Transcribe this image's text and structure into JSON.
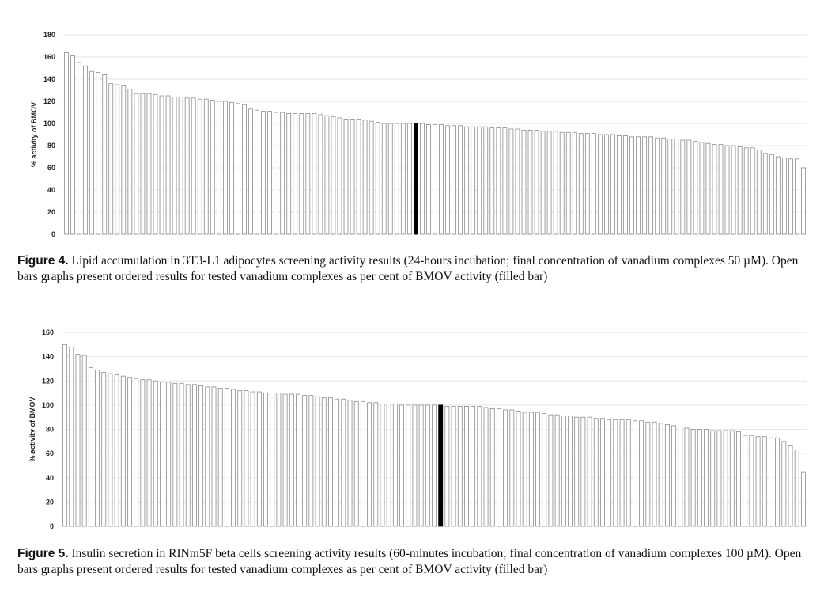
{
  "chart_data": [
    {
      "type": "bar",
      "title": "",
      "xlabel": "",
      "ylabel": "% activity of BMOV",
      "ylim": [
        0,
        180
      ],
      "yticks": [
        0,
        20,
        40,
        60,
        80,
        100,
        120,
        140,
        160,
        180
      ],
      "grid": true,
      "highlight_index": 55,
      "series": [
        {
          "values": [
            164,
            161,
            155,
            152,
            147,
            146,
            144,
            136,
            135,
            134,
            131,
            127,
            127,
            127,
            126,
            125,
            125,
            124,
            124,
            123,
            123,
            122,
            122,
            121,
            120,
            120,
            119,
            118,
            117,
            113,
            112,
            111,
            111,
            110,
            110,
            109,
            109,
            109,
            109,
            109,
            108,
            107,
            106,
            105,
            104,
            104,
            104,
            103,
            102,
            101,
            100,
            100,
            100,
            100,
            100,
            100,
            100,
            99,
            99,
            99,
            98,
            98,
            98,
            97,
            97,
            97,
            97,
            96,
            96,
            96,
            95,
            95,
            94,
            94,
            94,
            93,
            93,
            93,
            92,
            92,
            92,
            91,
            91,
            91,
            90,
            90,
            90,
            89,
            89,
            88,
            88,
            88,
            88,
            87,
            87,
            86,
            86,
            85,
            85,
            84,
            83,
            82,
            81,
            81,
            80,
            80,
            79,
            78,
            78,
            76,
            73,
            72,
            70,
            69,
            68,
            68,
            60
          ]
        }
      ],
      "caption_label": "Figure 4.",
      "caption_text": " Lipid accumulation in 3T3-L1 adipocytes screening activity results (24-hours incubation; final concentration of vanadium complexes 50 µM). Open bars graphs present ordered results for tested vanadium complexes as per cent of BMOV activity (filled bar)"
    },
    {
      "type": "bar",
      "title": "",
      "xlabel": "",
      "ylabel": "% activity of BMOV",
      "ylim": [
        0,
        160
      ],
      "yticks": [
        0,
        20,
        40,
        60,
        80,
        100,
        120,
        140,
        160
      ],
      "grid": true,
      "highlight_index": 58,
      "series": [
        {
          "values": [
            150,
            148,
            142,
            141,
            131,
            129,
            127,
            126,
            125,
            124,
            123,
            122,
            121,
            121,
            120,
            119,
            119,
            118,
            118,
            117,
            117,
            116,
            115,
            115,
            114,
            114,
            113,
            112,
            112,
            111,
            111,
            110,
            110,
            110,
            109,
            109,
            109,
            108,
            108,
            107,
            106,
            106,
            105,
            105,
            104,
            103,
            103,
            102,
            102,
            101,
            101,
            101,
            100,
            100,
            100,
            100,
            100,
            100,
            100,
            99,
            99,
            99,
            99,
            99,
            99,
            98,
            97,
            97,
            96,
            96,
            95,
            94,
            94,
            94,
            93,
            92,
            92,
            91,
            91,
            90,
            90,
            90,
            89,
            89,
            88,
            88,
            88,
            88,
            87,
            87,
            86,
            86,
            85,
            84,
            83,
            82,
            81,
            80,
            80,
            80,
            79,
            79,
            79,
            79,
            78,
            75,
            75,
            74,
            74,
            73,
            73,
            70,
            67,
            63,
            45
          ]
        }
      ],
      "caption_label": "Figure 5.",
      "caption_text": " Insulin secretion in RINm5F beta cells screening activity results (60-minutes incubation; final concentration of vanadium complexes 100 µM). Open bars graphs present ordered results for tested vanadium complexes as per cent of BMOV activity (filled bar)"
    }
  ]
}
